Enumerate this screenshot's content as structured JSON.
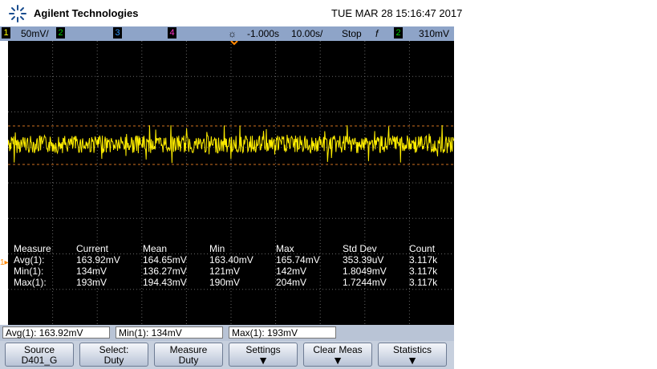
{
  "header": {
    "brand": "Agilent Technologies",
    "datetime": "TUE MAR 28 15:16:47 2017"
  },
  "status": {
    "ch1": "1",
    "ch1_scale": "50mV/",
    "ch2": "2",
    "ch3": "3",
    "ch4": "4",
    "delay": "-1.000s",
    "timebase": "10.00s/",
    "run_state": "Stop",
    "trigger_source": "2",
    "trigger_level": "310mV"
  },
  "measurements": {
    "columns": [
      "Measure",
      "Current",
      "Mean",
      "Min",
      "Max",
      "Std Dev",
      "Count"
    ],
    "rows": [
      [
        "Avg(1):",
        "163.92mV",
        "164.65mV",
        "163.40mV",
        "165.74mV",
        "353.39uV",
        "3.117k"
      ],
      [
        "Min(1):",
        "134mV",
        "136.27mV",
        "121mV",
        "142mV",
        "1.8049mV",
        "3.117k"
      ],
      [
        "Max(1):",
        "193mV",
        "194.43mV",
        "190mV",
        "204mV",
        "1.7244mV",
        "3.117k"
      ]
    ]
  },
  "quick_measurements": [
    "Avg(1): 163.92mV",
    "Min(1): 134mV",
    "Max(1): 193mV"
  ],
  "softkeys": [
    {
      "label": "Source",
      "value": "D401_G"
    },
    {
      "label": "Select:",
      "value": "Duty"
    },
    {
      "label": "Measure",
      "value": "Duty"
    },
    {
      "label": "Settings"
    },
    {
      "label": "Clear Meas"
    },
    {
      "label": "Statistics"
    }
  ]
}
